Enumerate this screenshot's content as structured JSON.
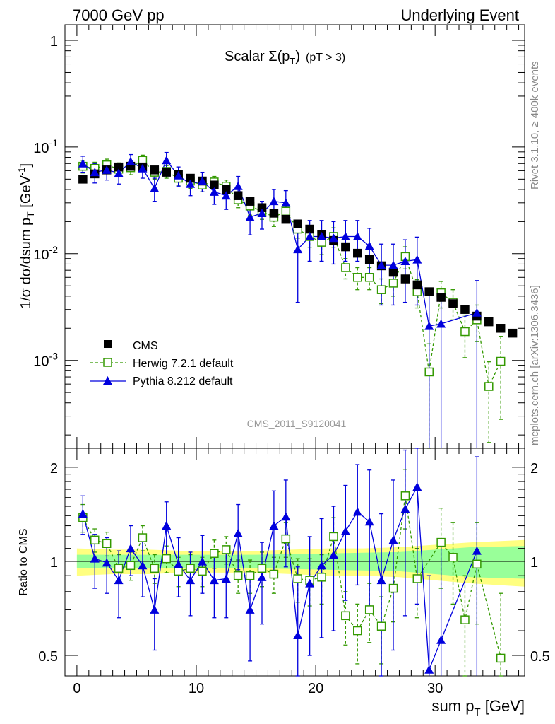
{
  "header": {
    "left": "7000 GeV pp",
    "right": "Underlying Event"
  },
  "title": {
    "main": "Scalar Σ(p",
    "sub": "T",
    "close": ")",
    "cut": "(pT >  3)"
  },
  "side_text": {
    "rivet": "Rivet 3.1.10, ≥ 400k events",
    "mcplots": "mcplots.cern.ch [arXiv:1306.3436]"
  },
  "analysis_label": "CMS_2011_S9120041",
  "axes": {
    "y_top_label": "1/σ dσ/dsum p",
    "y_top_label_sub": "T",
    "y_top_label_unit_pre": " [GeV",
    "y_top_label_unit_sup": "-1",
    "y_top_label_unit_post": "]",
    "y_ratio_label": "Ratio to CMS",
    "x_label": "sum p",
    "x_label_sub": "T",
    "x_label_unit": " [GeV]",
    "x_ticks": [
      "0",
      "10",
      "20",
      "30"
    ],
    "y_top_ticks": [
      "1",
      "10",
      "10",
      "10"
    ],
    "y_top_tick_exps": [
      "",
      "-1",
      "-2",
      "-3"
    ],
    "y_ratio_ticks": [
      "2",
      "1",
      "0.5"
    ]
  },
  "legend": {
    "cms": "CMS",
    "herwig": "Herwig 7.2.1 default",
    "pythia": "Pythia 8.212 default"
  },
  "colors": {
    "cms": "#000000",
    "herwig": "#339900",
    "pythia": "#0000dd",
    "band_inner": "#99ff99",
    "band_outer": "#ffff80"
  },
  "chart_data": [
    {
      "type": "scatter",
      "panel": "main",
      "title": "Scalar Σ(pT) (pT > 3)",
      "xlabel": "sum pT [GeV]",
      "ylabel": "1/σ dσ/dsum pT [GeV-1]",
      "xlim": [
        -1,
        37.5
      ],
      "ylim": [
        0.00015,
        1.4
      ],
      "yscale": "log",
      "legend_position": "bottom-left",
      "series": [
        {
          "name": "CMS",
          "x": [
            0.5,
            1.5,
            2.5,
            3.5,
            4.5,
            5.5,
            6.5,
            7.5,
            8.5,
            9.5,
            10.5,
            11.5,
            12.5,
            13.5,
            14.5,
            15.5,
            16.5,
            17.5,
            18.5,
            19.5,
            20.5,
            21.5,
            22.5,
            23.5,
            24.5,
            25.5,
            26.5,
            27.5,
            28.5,
            29.5,
            30.5,
            31.5,
            32.5,
            33.5,
            34.5,
            35.5,
            36.5
          ],
          "y": [
            0.05,
            0.056,
            0.061,
            0.065,
            0.066,
            0.065,
            0.061,
            0.058,
            0.055,
            0.051,
            0.048,
            0.044,
            0.04,
            0.035,
            0.031,
            0.027,
            0.024,
            0.021,
            0.019,
            0.017,
            0.015,
            0.0133,
            0.0116,
            0.0101,
            0.0088,
            0.0077,
            0.0067,
            0.0058,
            0.0051,
            0.0044,
            0.0039,
            0.0034,
            0.003,
            0.0026,
            0.0023,
            0.002,
            0.0018
          ]
        },
        {
          "name": "Herwig 7.2.1 default",
          "x": [
            0.5,
            1.5,
            2.5,
            3.5,
            4.5,
            5.5,
            6.5,
            7.5,
            8.5,
            9.5,
            10.5,
            11.5,
            12.5,
            13.5,
            14.5,
            15.5,
            16.5,
            17.5,
            18.5,
            19.5,
            20.5,
            21.5,
            22.5,
            23.5,
            24.5,
            25.5,
            26.5,
            27.5,
            28.5,
            29.5,
            30.5,
            31.5,
            32.5,
            33.5,
            34.5,
            35.5
          ],
          "y": [
            0.066,
            0.063,
            0.068,
            0.062,
            0.064,
            0.075,
            0.058,
            0.059,
            0.051,
            0.048,
            0.044,
            0.047,
            0.043,
            0.032,
            0.028,
            0.025,
            0.022,
            0.025,
            0.017,
            0.0145,
            0.0128,
            0.0145,
            0.0074,
            0.006,
            0.006,
            0.0046,
            0.0053,
            0.0094,
            0.0044,
            0.00078,
            0.0043,
            0.0035,
            0.00186,
            0.0024,
            0.00057,
            0.00098
          ],
          "yerr": [
            0.009,
            0.009,
            0.009,
            0.009,
            0.009,
            0.009,
            0.008,
            0.008,
            0.007,
            0.007,
            0.006,
            0.006,
            0.006,
            0.005,
            0.005,
            0.004,
            0.004,
            0.004,
            0.003,
            0.003,
            0.003,
            0.003,
            0.0016,
            0.0014,
            0.0014,
            0.0012,
            0.0013,
            0.0022,
            0.0013,
            0.00065,
            0.0012,
            0.0011,
            0.0008,
            0.0009,
            0.0004,
            0.0007
          ]
        },
        {
          "name": "Pythia 8.212 default",
          "x": [
            0.5,
            1.5,
            2.5,
            3.5,
            4.5,
            5.5,
            6.5,
            7.5,
            8.5,
            9.5,
            10.5,
            11.5,
            12.5,
            13.5,
            14.5,
            15.5,
            16.5,
            17.5,
            18.5,
            19.5,
            20.5,
            21.5,
            22.5,
            23.5,
            24.5,
            25.5,
            26.5,
            27.5,
            28.5,
            29.5,
            30.5,
            33.5
          ],
          "y": [
            0.07,
            0.058,
            0.061,
            0.057,
            0.073,
            0.063,
            0.041,
            0.075,
            0.054,
            0.045,
            0.048,
            0.038,
            0.035,
            0.043,
            0.022,
            0.024,
            0.031,
            0.03,
            0.011,
            0.0145,
            0.0145,
            0.014,
            0.0145,
            0.0145,
            0.0118,
            0.0078,
            0.0078,
            0.0085,
            0.0088,
            0.0021,
            0.0022,
            0.0028
          ],
          "yerr": [
            0.012,
            0.012,
            0.012,
            0.012,
            0.012,
            0.012,
            0.01,
            0.014,
            0.011,
            0.01,
            0.01,
            0.009,
            0.009,
            0.01,
            0.007,
            0.007,
            0.009,
            0.009,
            0.0075,
            0.006,
            0.006,
            0.006,
            0.006,
            0.006,
            0.0055,
            0.0045,
            0.0045,
            0.005,
            0.0055,
            0.0021,
            0.0022,
            0.0028
          ]
        }
      ]
    },
    {
      "type": "scatter",
      "panel": "ratio",
      "ylabel": "Ratio to CMS",
      "xlim": [
        -1,
        37.5
      ],
      "ylim": [
        0.43,
        2.3
      ],
      "yscale": "log",
      "reference_line": 1,
      "band_x": [
        0,
        3,
        6,
        9,
        12,
        15,
        18,
        21,
        24,
        27,
        30,
        33,
        37.5
      ],
      "band_inner_halfwidth": [
        0.05,
        0.05,
        0.05,
        0.05,
        0.05,
        0.05,
        0.055,
        0.06,
        0.065,
        0.07,
        0.09,
        0.11,
        0.12
      ],
      "band_outer_halfwidth": [
        0.1,
        0.09,
        0.09,
        0.08,
        0.08,
        0.08,
        0.09,
        0.1,
        0.1,
        0.11,
        0.13,
        0.15,
        0.17
      ],
      "series": [
        {
          "name": "Herwig 7.2.1 default",
          "x": [
            0.5,
            1.5,
            2.5,
            3.5,
            4.5,
            5.5,
            6.5,
            7.5,
            8.5,
            9.5,
            10.5,
            11.5,
            12.5,
            13.5,
            14.5,
            15.5,
            16.5,
            17.5,
            18.5,
            19.5,
            20.5,
            21.5,
            22.5,
            23.5,
            24.5,
            25.5,
            26.5,
            27.5,
            28.5,
            30.5,
            31.5,
            32.5,
            33.5,
            35.5
          ],
          "y": [
            1.38,
            1.17,
            1.14,
            0.95,
            0.97,
            1.19,
            0.95,
            1.02,
            0.93,
            0.95,
            0.93,
            1.06,
            1.09,
            0.9,
            0.9,
            0.95,
            0.91,
            1.18,
            0.88,
            0.87,
            0.89,
            1.2,
            0.67,
            0.6,
            0.7,
            0.62,
            0.82,
            1.62,
            0.88,
            1.15,
            1.03,
            0.65,
            0.98,
            0.49
          ],
          "yerr": [
            0.14,
            0.1,
            0.1,
            0.1,
            0.1,
            0.11,
            0.1,
            0.1,
            0.1,
            0.1,
            0.1,
            0.11,
            0.11,
            0.11,
            0.11,
            0.12,
            0.12,
            0.15,
            0.14,
            0.15,
            0.16,
            0.18,
            0.13,
            0.13,
            0.15,
            0.15,
            0.18,
            0.35,
            0.22,
            0.33,
            0.3,
            0.25,
            0.35,
            0.3
          ]
        },
        {
          "name": "Pythia 8.212 default",
          "x": [
            0.5,
            1.5,
            2.5,
            3.5,
            4.5,
            5.5,
            6.5,
            7.5,
            8.5,
            9.5,
            10.5,
            11.5,
            12.5,
            13.5,
            14.5,
            15.5,
            16.5,
            17.5,
            18.5,
            19.5,
            20.5,
            21.5,
            22.5,
            23.5,
            24.5,
            25.5,
            26.5,
            27.5,
            28.5,
            29.5,
            30.5,
            33.5
          ],
          "y": [
            1.42,
            1.02,
            0.99,
            0.87,
            1.1,
            0.97,
            0.7,
            1.3,
            0.98,
            0.87,
            1.0,
            0.87,
            0.88,
            1.23,
            0.7,
            0.89,
            1.3,
            1.39,
            0.58,
            0.85,
            0.97,
            1.05,
            1.25,
            1.44,
            1.34,
            0.87,
            1.17,
            1.47,
            1.73,
            0.45,
            0.56,
            1.08
          ],
          "yerr": [
            0.2,
            0.2,
            0.2,
            0.21,
            0.2,
            0.2,
            0.18,
            0.25,
            0.21,
            0.2,
            0.21,
            0.21,
            0.22,
            0.29,
            0.22,
            0.26,
            0.38,
            0.43,
            0.38,
            0.35,
            0.4,
            0.45,
            0.5,
            0.6,
            0.62,
            0.55,
            0.65,
            0.8,
            1.0,
            0.45,
            0.56,
            1.08
          ]
        }
      ]
    }
  ]
}
